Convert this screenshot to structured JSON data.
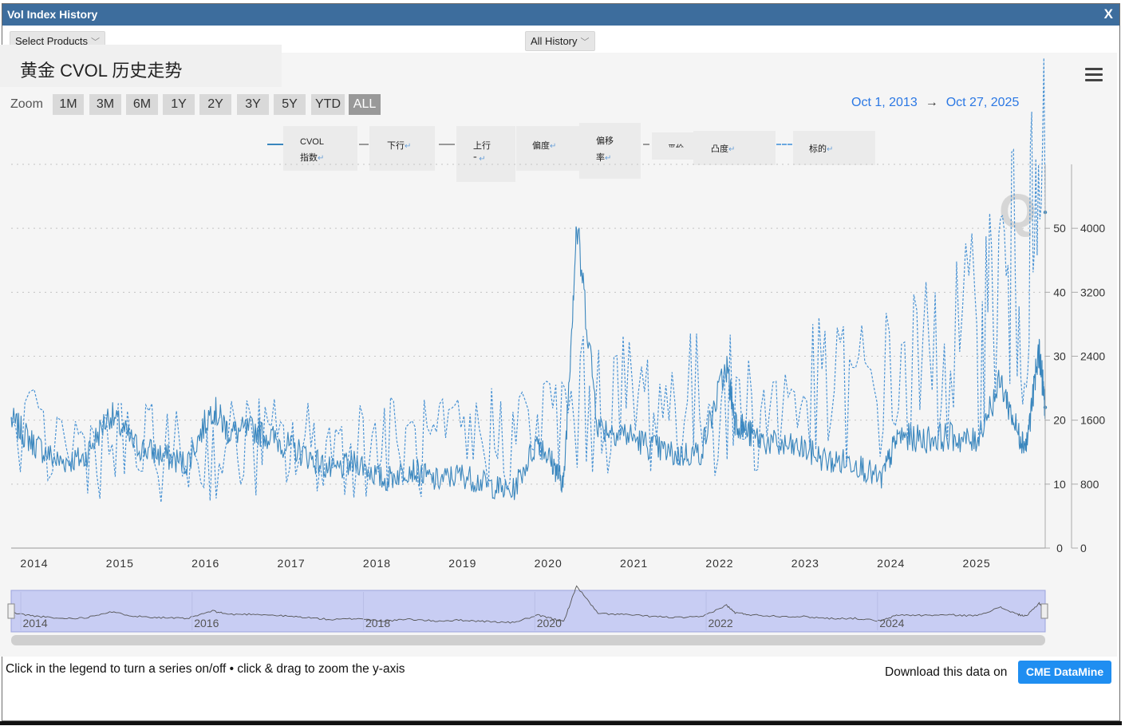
{
  "window": {
    "title": "Vol Index History",
    "close_label": "X"
  },
  "controls": {
    "product_select": "Select Products",
    "history_select": "All History",
    "chevron_icon": "chevron-down-icon"
  },
  "chart_title": "黄金 CVOL 历史走势",
  "zoom": {
    "label": "Zoom",
    "buttons": [
      "1M",
      "3M",
      "6M",
      "1Y",
      "2Y",
      "3Y",
      "5Y",
      "YTD",
      "ALL"
    ],
    "active": "ALL"
  },
  "date_range": {
    "from": "Oct 1, 2013",
    "arrow": "→",
    "to": "Oct 27, 2025"
  },
  "legend": {
    "cvol_line1": "CVOL",
    "cvol_line2": "指数",
    "down": "下行",
    "up_line1": "上行",
    "up_line2": "",
    "skew": "偏度",
    "skew_ratio_line1": "偏移",
    "skew_ratio_line2": "率",
    "atm": "平价",
    "convexity": "凸度",
    "underlying": "标的",
    "return_mark": "↵"
  },
  "watermark": "Q",
  "footer": {
    "hint": "Click in the legend to turn a series on/off • click & drag to zoom the y-axis",
    "download_text": "Download this data on",
    "download_button": "CME DataMine"
  },
  "colors": {
    "titlebar": "#3d6d9d",
    "series": "#3a86bd",
    "range_text": "#2b78e4",
    "navigator_fill": "#c8cdf3",
    "button_blue": "#1f8ef1"
  },
  "chart_data": {
    "type": "line",
    "x_axis_labels": [
      "2014",
      "2015",
      "2016",
      "2017",
      "2018",
      "2019",
      "2020",
      "2021",
      "2022",
      "2023",
      "2024",
      "2025"
    ],
    "y_axis_left": {
      "ticks": [
        0,
        10,
        20,
        30,
        40,
        50
      ],
      "range": [
        0,
        60
      ]
    },
    "y_axis_right": {
      "ticks": [
        0,
        800,
        1600,
        2400,
        3200,
        4000
      ],
      "range": [
        0,
        4800
      ]
    },
    "navigator_labels": [
      "2014",
      "2016",
      "2018",
      "2020",
      "2022",
      "2024"
    ],
    "series": [
      {
        "name": "CVOL 指数",
        "axis": "left",
        "style": "solid",
        "x": [
          2013.75,
          2014.0,
          2014.3,
          2014.6,
          2014.9,
          2015.2,
          2015.5,
          2015.8,
          2016.1,
          2016.3,
          2016.6,
          2016.9,
          2017.2,
          2017.5,
          2017.8,
          2018.1,
          2018.4,
          2018.7,
          2019.0,
          2019.3,
          2019.6,
          2019.9,
          2020.1,
          2020.2,
          2020.35,
          2020.6,
          2020.9,
          2021.2,
          2021.5,
          2021.8,
          2022.1,
          2022.2,
          2022.4,
          2022.7,
          2023.0,
          2023.3,
          2023.6,
          2023.9,
          2024.1,
          2024.4,
          2024.7,
          2025.0,
          2025.3,
          2025.5,
          2025.6,
          2025.75,
          2025.82
        ],
        "y": [
          20,
          16.5,
          13.5,
          14,
          21,
          16,
          14.5,
          13.2,
          22,
          18,
          18.5,
          16.5,
          14.5,
          12,
          13.5,
          10.5,
          12.5,
          10.5,
          11.5,
          10,
          8.7,
          17,
          12.5,
          10,
          50.5,
          19,
          18,
          16,
          14.5,
          15,
          28.5,
          20,
          17.5,
          16,
          15.5,
          13.5,
          13.5,
          10.5,
          17.5,
          17,
          17.5,
          16.5,
          26,
          18,
          16,
          31,
          22
        ]
      },
      {
        "name": "标的",
        "axis": "right",
        "style": "dashed",
        "x": [
          2013.75,
          2014.5,
          2015.0,
          2015.5,
          2016.0,
          2016.5,
          2017.0,
          2017.5,
          2018.0,
          2018.5,
          2019.0,
          2019.5,
          2020.0,
          2020.5,
          2021.0,
          2021.5,
          2022.0,
          2022.5,
          2023.0,
          2023.5,
          2024.0,
          2024.5,
          2025.0,
          2025.3,
          2025.6,
          2025.82
        ],
        "y": [
          1320,
          1290,
          1250,
          1180,
          1130,
          1320,
          1230,
          1260,
          1320,
          1230,
          1300,
          1420,
          1550,
          1800,
          1850,
          1790,
          1830,
          1700,
          1900,
          1950,
          2050,
          2350,
          2650,
          3350,
          3400,
          4200
        ]
      }
    ]
  }
}
